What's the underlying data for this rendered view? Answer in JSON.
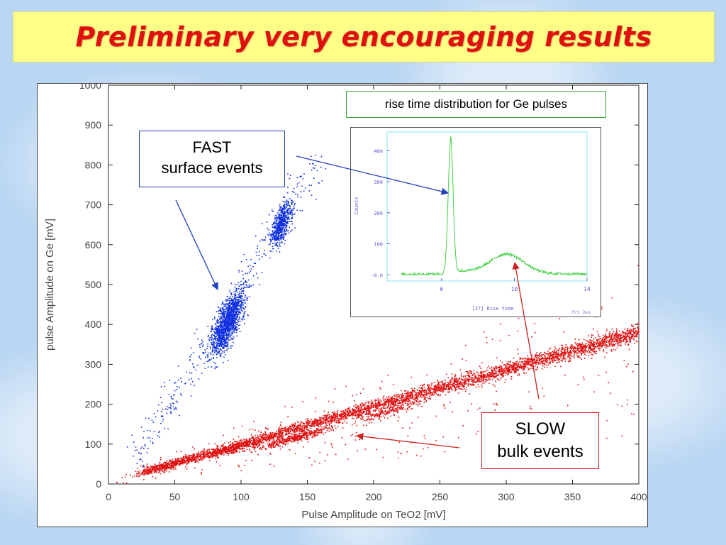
{
  "slide": {
    "title": "Preliminary very encouraging results",
    "callouts": {
      "fast_line1": "FAST",
      "fast_line2": "surface events",
      "slow_line1": "SLOW",
      "slow_line2": "bulk events",
      "inset_caption": "rise time distribution for Ge pulses"
    }
  },
  "colors": {
    "title_text": "#e01010",
    "title_banner": "#ffff88",
    "fast_events": "#1030e0",
    "slow_events": "#e01010",
    "inset_curve": "#33cc33",
    "inset_axis": "#6060d0",
    "inset_frame": "#88e0f0"
  },
  "chart_data": [
    {
      "type": "scatter",
      "title": "",
      "xlabel": "Pulse Amplitude on TeO2 [mV]",
      "ylabel": "pulse Amplitude on Ge [mV]",
      "xlim": [
        0,
        400
      ],
      "ylim": [
        0,
        1000
      ],
      "x_ticks": [
        "0",
        "50",
        "100",
        "150",
        "200",
        "250",
        "300",
        "350",
        "400"
      ],
      "y_ticks": [
        "0",
        "100",
        "200",
        "300",
        "400",
        "500",
        "600",
        "700",
        "800",
        "900",
        "1000"
      ],
      "grid": false,
      "series": [
        {
          "name": "FAST",
          "clusters": [
            {
              "center": [
                90,
                405
              ],
              "spread": [
                9,
                45
              ],
              "count": 1400,
              "orientation_deg": 62
            },
            {
              "center": [
                130,
                650
              ],
              "spread": [
                6,
                30
              ],
              "count": 600,
              "orientation_deg": 68
            }
          ],
          "band": {
            "from": [
              20,
              60
            ],
            "to": [
              160,
              820
            ],
            "count": 350,
            "spread": 20
          }
        },
        {
          "name": "SLOW",
          "band": {
            "from": [
              25,
              30
            ],
            "to": [
              400,
              380
            ],
            "count": 4200,
            "spread": 9
          },
          "dense_clusters": [
            {
              "center": [
                45,
                45
              ],
              "count": 260
            },
            {
              "center": [
                95,
                88
              ],
              "count": 320
            },
            {
              "center": [
                140,
                115
              ],
              "count": 420
            },
            {
              "center": [
                210,
                180
              ],
              "count": 180
            }
          ],
          "scatter_count": 320
        }
      ]
    },
    {
      "type": "line",
      "title": "",
      "xlabel": "[27] Rise time",
      "ylabel": "Counts",
      "xlim": [
        3,
        14
      ],
      "ylim": [
        -20,
        460
      ],
      "x_ticks": [
        "6",
        "10",
        "14"
      ],
      "y_ticks": [
        "-0.0",
        "100",
        "200",
        "300",
        "400"
      ],
      "footer_label": "Fri Jun",
      "peaks": [
        {
          "position": 6.5,
          "height": 430,
          "width": 0.13
        },
        {
          "position": 9.6,
          "height": 62,
          "width": 0.9
        }
      ]
    }
  ]
}
